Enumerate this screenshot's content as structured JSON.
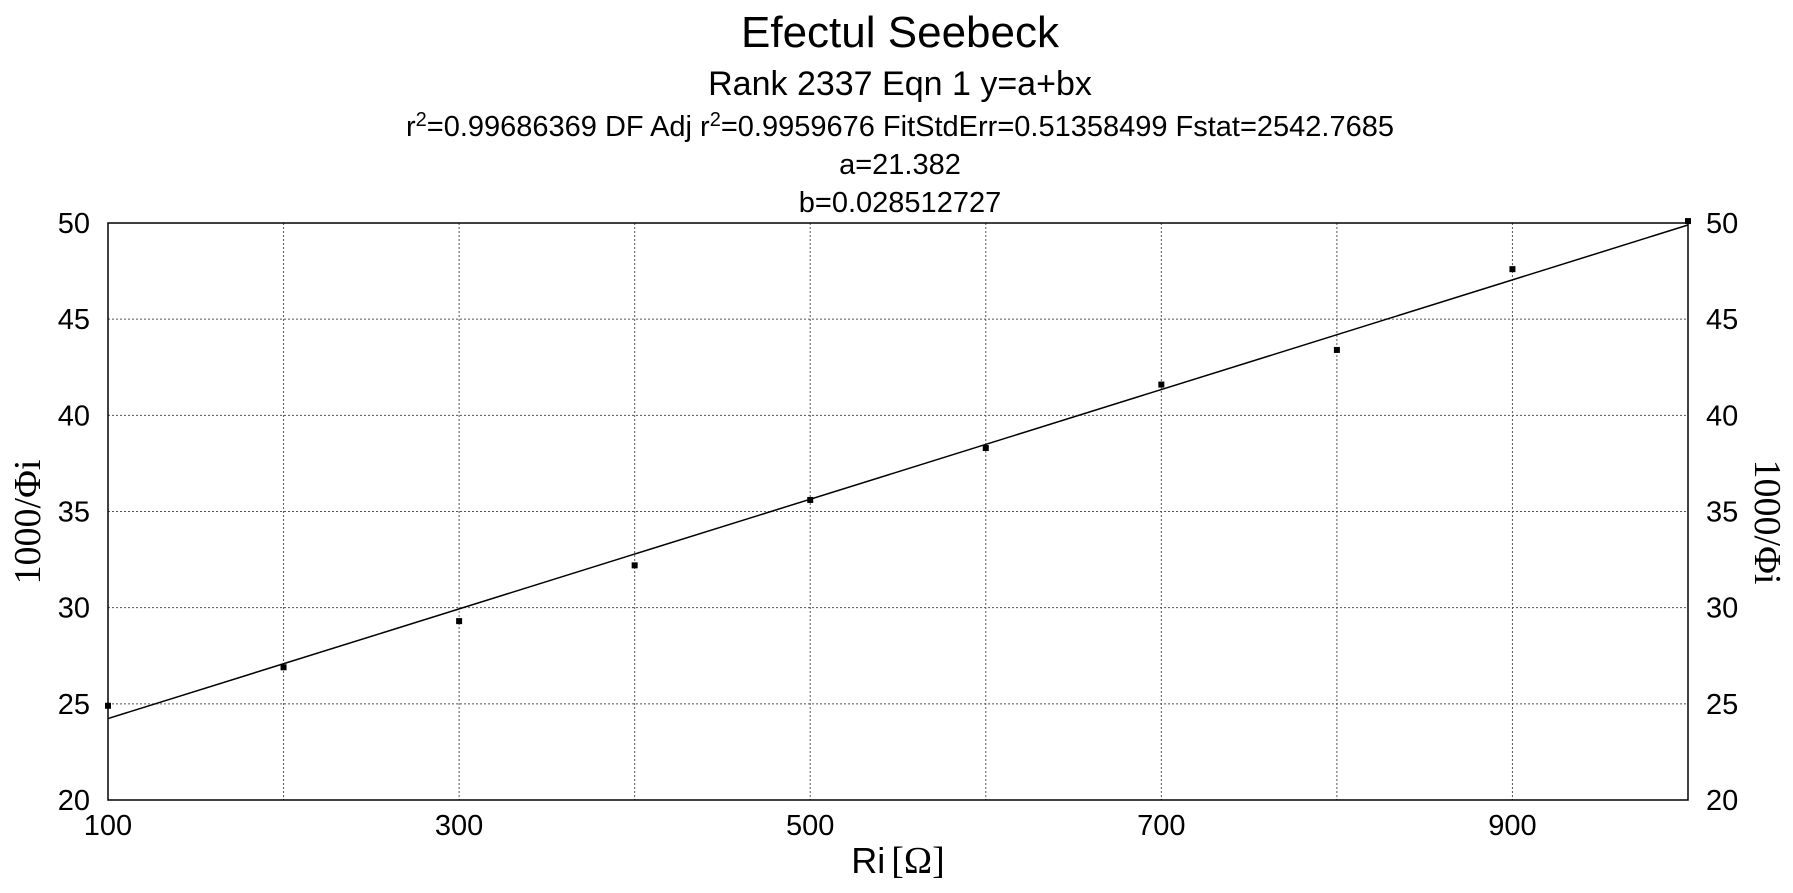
{
  "chart_data": {
    "type": "scatter",
    "title": "Efectul Seebeck",
    "subtitle": "Rank 2337  Eqn 1  y=a+bx",
    "stats": {
      "r2_prefix": "r",
      "r2_sup": "2",
      "r2_value": "=0.99686369  DF Adj r",
      "adj_sup": "2",
      "adj_value": "=0.9959676  FitStdErr=0.51358499  Fstat=2542.7685"
    },
    "param_a": "a=21.382",
    "param_b": "b=0.028512727",
    "xlabel_main": "Ri",
    "xlabel_unit": "[Ω]",
    "ylabel": "1000/Φi",
    "ylabel_right": "1000/Φi",
    "xlim": [
      100,
      1000
    ],
    "ylim": [
      20,
      50
    ],
    "x_ticks": [
      100,
      300,
      500,
      700,
      900
    ],
    "x_grid": [
      200,
      300,
      400,
      500,
      600,
      700,
      800,
      900
    ],
    "y_ticks": [
      20,
      25,
      30,
      35,
      40,
      45,
      50
    ],
    "grid": true,
    "fit": {
      "a": 21.382,
      "b": 0.028512727
    },
    "series": [
      {
        "x": [
          100,
          200,
          300,
          400,
          500,
          600,
          700,
          800,
          900,
          1000
        ],
        "y": [
          24.9,
          26.9,
          29.3,
          32.2,
          35.6,
          38.3,
          41.6,
          43.4,
          47.6,
          50.1
        ]
      }
    ]
  }
}
